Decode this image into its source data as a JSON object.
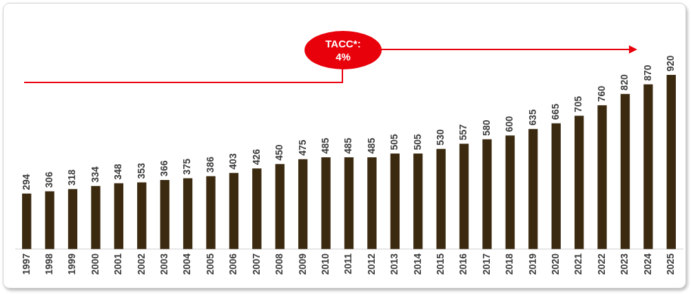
{
  "chart_data": {
    "type": "bar",
    "categories": [
      "1997",
      "1998",
      "1999",
      "2000",
      "2001",
      "2002",
      "2003",
      "2004",
      "2005",
      "2006",
      "2007",
      "2008",
      "2009",
      "2010",
      "2011",
      "2012",
      "2013",
      "2014",
      "2015",
      "2016",
      "2017",
      "2018",
      "2019",
      "2020",
      "2021",
      "2022",
      "2023",
      "2024",
      "2025"
    ],
    "values": [
      294,
      306,
      318,
      334,
      348,
      353,
      366,
      375,
      386,
      403,
      426,
      450,
      475,
      485,
      485,
      485,
      505,
      505,
      530,
      557,
      580,
      600,
      635,
      665,
      705,
      760,
      820,
      870,
      920
    ],
    "color": "#3b2a10",
    "data_labels": true,
    "grid": false,
    "legend": false,
    "annotations": [
      "TACC*: 4%"
    ]
  }
}
